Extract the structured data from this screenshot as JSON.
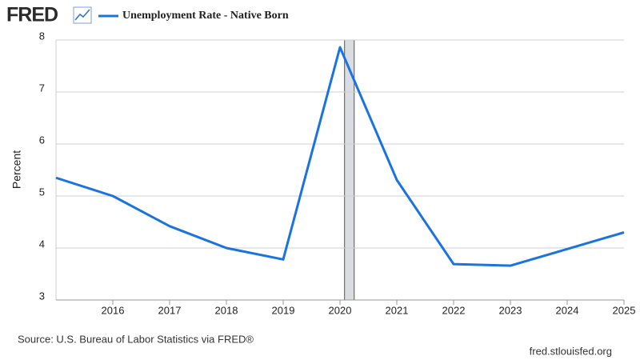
{
  "logo": "FRED",
  "chart_data": {
    "type": "line",
    "x": [
      2015,
      2016,
      2017,
      2018,
      2019,
      2020,
      2021,
      2022,
      2023,
      2024,
      2025
    ],
    "series": [
      {
        "name": "Unemployment Rate - Native Born",
        "color": "#1a73e0",
        "values": [
          5.35,
          5.0,
          4.42,
          4.0,
          3.78,
          7.86,
          5.31,
          3.69,
          3.66,
          3.98,
          4.3
        ]
      }
    ],
    "xlim": [
      2015,
      2025
    ],
    "xticks": [
      2016,
      2017,
      2018,
      2019,
      2020,
      2021,
      2022,
      2023,
      2024,
      2025
    ],
    "ylim": [
      3,
      8
    ],
    "yticks": [
      3,
      4,
      5,
      6,
      7,
      8
    ],
    "ylabel": "Percent",
    "grid": true,
    "recession_shading": [
      2020.08,
      2020.25
    ],
    "source": "Source: U.S. Bureau of Labor Statistics via FRED®",
    "url": "fred.stlouisfed.org"
  }
}
